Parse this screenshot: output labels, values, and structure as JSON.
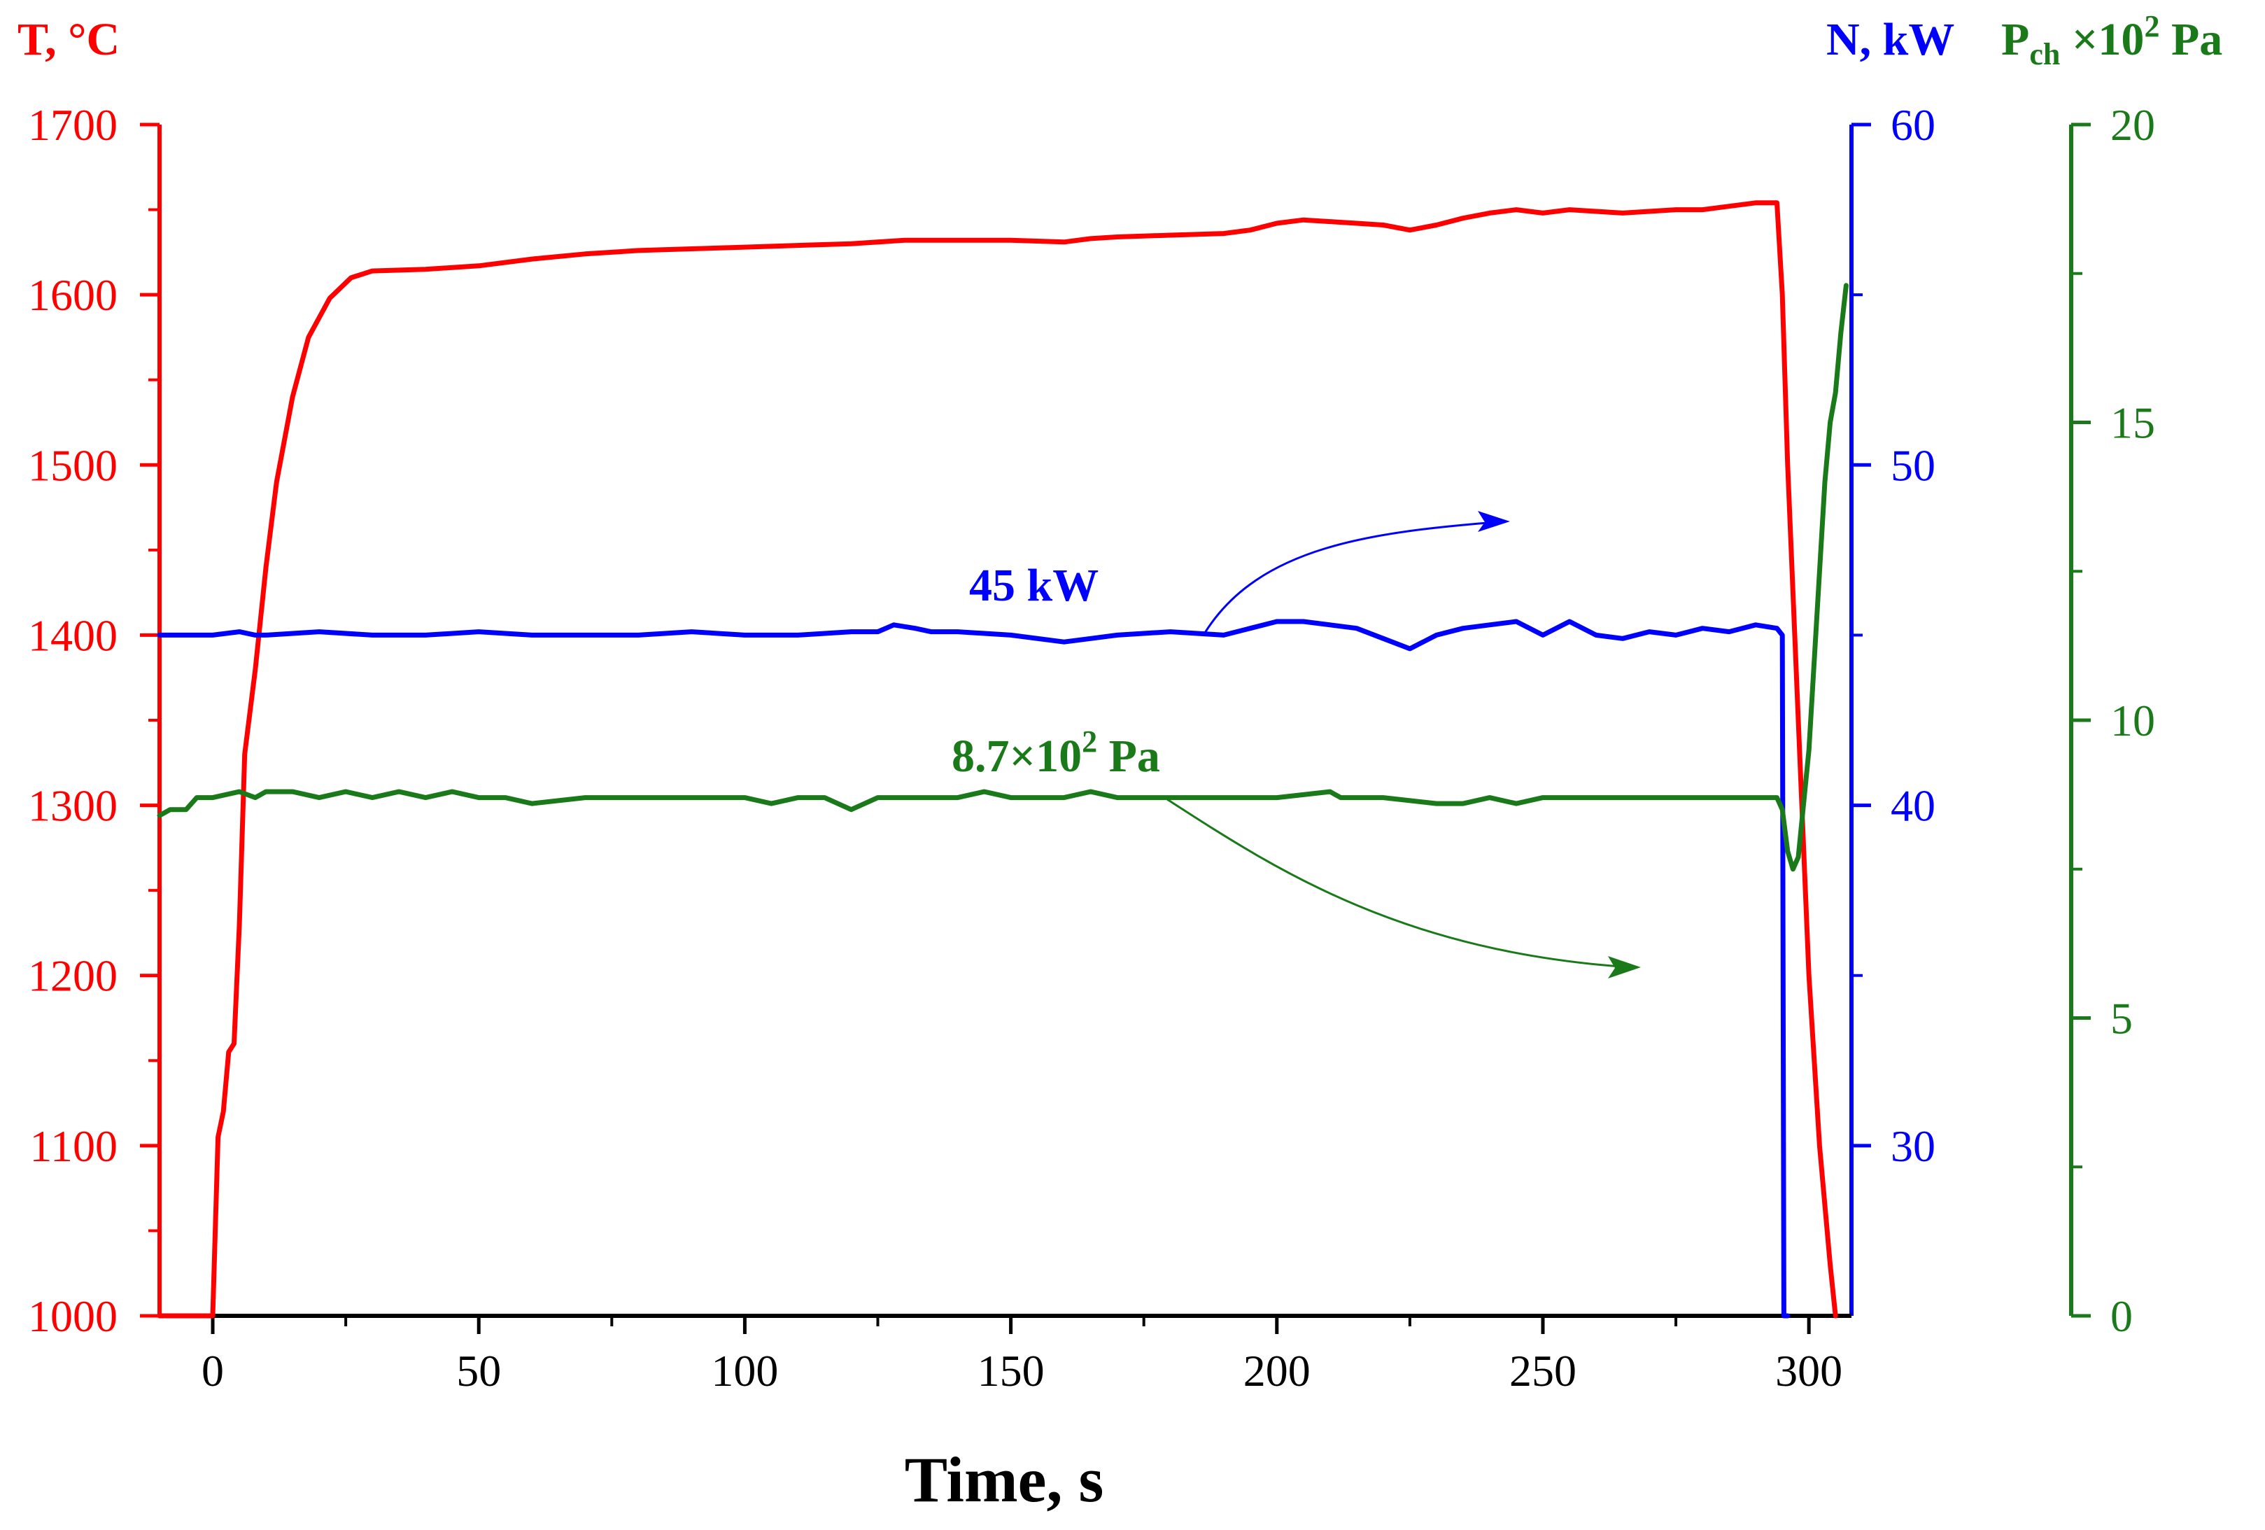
{
  "colors": {
    "temperature": "#ff0000",
    "power": "#0000ff",
    "pressure": "#1a7a1a",
    "axis": "#000000"
  },
  "chart_data": {
    "type": "line",
    "xlabel": "Time, s",
    "xlim": [
      -10,
      308
    ],
    "xticks": [
      0,
      50,
      100,
      150,
      200,
      250,
      300
    ],
    "xtick_labels": [
      "0",
      "50",
      "100",
      "150",
      "200",
      "250",
      "300"
    ],
    "axes": {
      "T": {
        "title": "T, °C",
        "lim": [
          1000,
          1700
        ],
        "ticks": [
          1000,
          1100,
          1200,
          1300,
          1400,
          1500,
          1600,
          1700
        ],
        "tick_labels": [
          "1000",
          "1100",
          "1200",
          "1300",
          "1400",
          "1500",
          "1600",
          "1700"
        ]
      },
      "N": {
        "title": "N, kW",
        "lim": [
          25,
          60
        ],
        "ticks": [
          30,
          40,
          50,
          60
        ],
        "tick_labels": [
          "30",
          "40",
          "50",
          "60"
        ],
        "minor_ticks": [
          35,
          45,
          55
        ]
      },
      "P": {
        "title_main": "P",
        "title_sub": "ch",
        "title_mid": " ×10",
        "title_sup": "2",
        "title_end": " Pa",
        "lim": [
          0,
          20
        ],
        "ticks": [
          0,
          5,
          10,
          15,
          20
        ],
        "tick_labels": [
          "0",
          "5",
          "10",
          "15",
          "20"
        ],
        "minor_ticks": [
          2.5,
          7.5,
          12.5,
          17.5
        ]
      }
    },
    "series": [
      {
        "name": "T",
        "axis": "T",
        "x": [
          -10,
          0,
          1,
          2,
          3,
          4,
          5,
          6,
          8,
          10,
          12,
          15,
          18,
          22,
          26,
          30,
          40,
          50,
          60,
          70,
          80,
          90,
          100,
          110,
          120,
          130,
          140,
          150,
          160,
          165,
          170,
          180,
          190,
          195,
          200,
          205,
          210,
          215,
          220,
          225,
          230,
          235,
          240,
          245,
          250,
          255,
          260,
          265,
          270,
          275,
          280,
          285,
          290,
          294,
          295,
          296,
          298,
          300,
          302,
          304,
          305
        ],
        "values": [
          1000,
          1000,
          1105,
          1120,
          1155,
          1160,
          1230,
          1330,
          1380,
          1440,
          1490,
          1540,
          1575,
          1598,
          1610,
          1614,
          1615,
          1617,
          1621,
          1624,
          1626,
          1627,
          1628,
          1629,
          1630,
          1632,
          1632,
          1632,
          1631,
          1633,
          1634,
          1635,
          1636,
          1638,
          1642,
          1644,
          1643,
          1642,
          1641,
          1638,
          1641,
          1645,
          1648,
          1650,
          1648,
          1650,
          1649,
          1648,
          1649,
          1650,
          1650,
          1652,
          1654,
          1654,
          1600,
          1500,
          1350,
          1200,
          1100,
          1030,
          1000
        ]
      },
      {
        "name": "N",
        "axis": "N",
        "x": [
          -10,
          0,
          5,
          8,
          10,
          20,
          30,
          40,
          50,
          60,
          70,
          80,
          90,
          100,
          110,
          120,
          125,
          128,
          132,
          135,
          140,
          150,
          160,
          165,
          170,
          180,
          190,
          195,
          200,
          205,
          210,
          215,
          220,
          225,
          230,
          235,
          240,
          245,
          250,
          255,
          260,
          265,
          270,
          275,
          280,
          285,
          290,
          294,
          295,
          295.3,
          296
        ],
        "values": [
          45,
          45,
          45.1,
          45,
          45,
          45.1,
          45,
          45,
          45.1,
          45,
          45,
          45,
          45.1,
          45,
          45,
          45.1,
          45.1,
          45.3,
          45.2,
          45.1,
          45.1,
          45,
          44.8,
          44.9,
          45,
          45.1,
          45,
          45.2,
          45.4,
          45.4,
          45.3,
          45.2,
          44.9,
          44.6,
          45,
          45.2,
          45.3,
          45.4,
          45,
          45.4,
          45,
          44.9,
          45.1,
          45,
          45.2,
          45.1,
          45.3,
          45.2,
          45,
          25,
          25
        ]
      },
      {
        "name": "P",
        "axis": "P",
        "x": [
          -10,
          -8,
          -5,
          -3,
          0,
          5,
          8,
          10,
          15,
          20,
          25,
          30,
          35,
          40,
          45,
          50,
          55,
          60,
          70,
          80,
          90,
          100,
          105,
          110,
          115,
          120,
          125,
          130,
          140,
          145,
          150,
          160,
          165,
          170,
          180,
          190,
          200,
          210,
          212,
          215,
          220,
          230,
          235,
          240,
          245,
          250,
          260,
          270,
          280,
          290,
          294,
          295,
          296,
          297,
          298,
          299,
          300,
          301,
          302,
          303,
          304,
          305,
          306,
          307
        ],
        "values": [
          8.4,
          8.5,
          8.5,
          8.7,
          8.7,
          8.8,
          8.7,
          8.8,
          8.8,
          8.7,
          8.8,
          8.7,
          8.8,
          8.7,
          8.8,
          8.7,
          8.7,
          8.6,
          8.7,
          8.7,
          8.7,
          8.7,
          8.6,
          8.7,
          8.7,
          8.5,
          8.7,
          8.7,
          8.7,
          8.8,
          8.7,
          8.7,
          8.8,
          8.7,
          8.7,
          8.7,
          8.7,
          8.8,
          8.7,
          8.7,
          8.7,
          8.6,
          8.6,
          8.7,
          8.6,
          8.7,
          8.7,
          8.7,
          8.7,
          8.7,
          8.7,
          8.5,
          7.8,
          7.5,
          7.7,
          8.6,
          9.5,
          11.0,
          12.5,
          14.0,
          15.0,
          15.5,
          16.5,
          17.3
        ]
      }
    ],
    "annotations": [
      {
        "text": "45 kW",
        "series": "N"
      },
      {
        "text_main": "8.7×10",
        "text_sup": "2",
        "text_end": " Pa",
        "series": "P"
      }
    ]
  }
}
